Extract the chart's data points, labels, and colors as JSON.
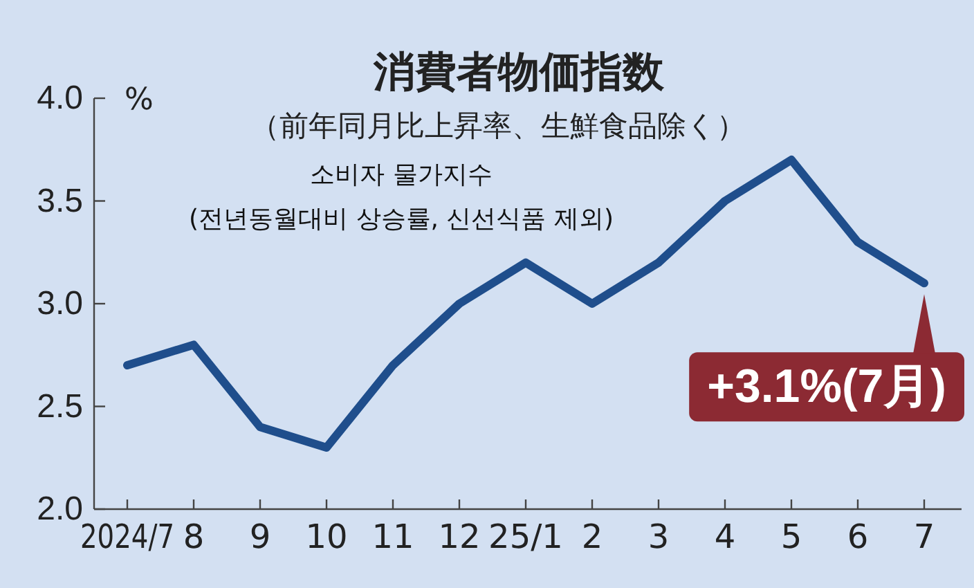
{
  "chart_data": {
    "type": "line",
    "title": "消費者物価指数",
    "subtitle": "（前年同月比上昇率、生鮮食品除く）",
    "ylabel": "%",
    "categories": [
      "2024/7",
      "8",
      "9",
      "10",
      "11",
      "12",
      "25/1",
      "2",
      "3",
      "4",
      "5",
      "6",
      "7"
    ],
    "series": [
      {
        "color": "#1f4e8c",
        "values": [
          2.7,
          2.8,
          2.4,
          2.3,
          2.7,
          3.0,
          3.2,
          3.0,
          3.2,
          3.5,
          3.7,
          3.3,
          3.1
        ]
      }
    ],
    "ylim": [
      2.0,
      4.0
    ],
    "yticks": [
      {
        "value": 2.0,
        "label": "2.0"
      },
      {
        "value": 2.5,
        "label": "2.5"
      },
      {
        "value": 3.0,
        "label": "3.0"
      },
      {
        "value": 3.5,
        "label": "3.5"
      },
      {
        "value": 4.0,
        "label": "4.0"
      }
    ],
    "grid": false,
    "marker": "none",
    "line_style": "solid",
    "annotations": [
      "소비자 물가지수",
      "(전년동월대비 상승률, 신선식품 제외)",
      {
        "text": "+3.1%(7月)",
        "x": "7",
        "y": 3.1
      }
    ]
  }
}
